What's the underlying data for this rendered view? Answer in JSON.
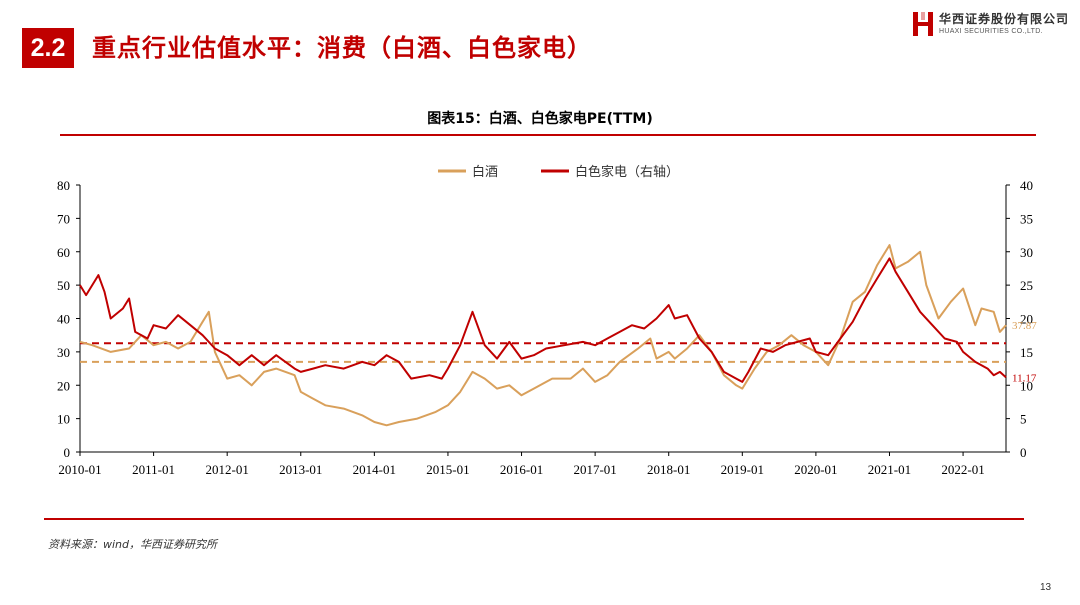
{
  "header": {
    "section_number": "2.2",
    "title": "重点行业估值水平：消费（白酒、白色家电）"
  },
  "logo": {
    "name_cn": "华西证券股份有限公司",
    "name_en": "HUAXI SECURITIES CO.,LTD."
  },
  "colors": {
    "brand_red": "#c00000",
    "baijiu": "#d9a05b",
    "appliance": "#c00000"
  },
  "chart_data": {
    "type": "line",
    "title": "图表15：白酒、白色家电PE(TTM)",
    "x_ticks": [
      "2010-01",
      "2011-01",
      "2012-01",
      "2013-01",
      "2014-01",
      "2015-01",
      "2016-01",
      "2017-01",
      "2018-01",
      "2019-01",
      "2020-01",
      "2021-01",
      "2022-01"
    ],
    "xlim": [
      "2010-01",
      "2022-08"
    ],
    "y_left": {
      "ticks": [
        "0",
        "10",
        "20",
        "30",
        "40",
        "50",
        "60",
        "70",
        "80"
      ],
      "lim": [
        0,
        80
      ]
    },
    "y_right": {
      "ticks": [
        "0",
        "5",
        "10",
        "15",
        "20",
        "25",
        "30",
        "35",
        "40"
      ],
      "lim": [
        0,
        40
      ]
    },
    "legend_position": "top-center",
    "grid": false,
    "series": [
      {
        "name": "白酒",
        "axis": "left",
        "style": "solid",
        "points": [
          [
            "2010-01",
            33
          ],
          [
            "2010-03",
            32
          ],
          [
            "2010-06",
            30
          ],
          [
            "2010-09",
            31
          ],
          [
            "2010-11",
            35
          ],
          [
            "2011-01",
            32
          ],
          [
            "2011-03",
            33
          ],
          [
            "2011-05",
            31
          ],
          [
            "2011-07",
            33
          ],
          [
            "2011-09",
            39
          ],
          [
            "2011-10",
            42
          ],
          [
            "2011-11",
            30
          ],
          [
            "2012-01",
            22
          ],
          [
            "2012-03",
            23
          ],
          [
            "2012-05",
            20
          ],
          [
            "2012-07",
            24
          ],
          [
            "2012-09",
            25
          ],
          [
            "2012-12",
            23
          ],
          [
            "2013-01",
            18
          ],
          [
            "2013-03",
            16
          ],
          [
            "2013-05",
            14
          ],
          [
            "2013-08",
            13
          ],
          [
            "2013-11",
            11
          ],
          [
            "2014-01",
            9
          ],
          [
            "2014-03",
            8
          ],
          [
            "2014-05",
            9
          ],
          [
            "2014-08",
            10
          ],
          [
            "2014-11",
            12
          ],
          [
            "2015-01",
            14
          ],
          [
            "2015-03",
            18
          ],
          [
            "2015-05",
            24
          ],
          [
            "2015-07",
            22
          ],
          [
            "2015-09",
            19
          ],
          [
            "2015-11",
            20
          ],
          [
            "2016-01",
            17
          ],
          [
            "2016-03",
            19
          ],
          [
            "2016-06",
            22
          ],
          [
            "2016-09",
            22
          ],
          [
            "2016-11",
            25
          ],
          [
            "2017-01",
            21
          ],
          [
            "2017-03",
            23
          ],
          [
            "2017-05",
            27
          ],
          [
            "2017-08",
            31
          ],
          [
            "2017-10",
            34
          ],
          [
            "2017-11",
            28
          ],
          [
            "2018-01",
            30
          ],
          [
            "2018-02",
            28
          ],
          [
            "2018-04",
            31
          ],
          [
            "2018-06",
            35
          ],
          [
            "2018-08",
            30
          ],
          [
            "2018-10",
            23
          ],
          [
            "2018-12",
            20
          ],
          [
            "2019-01",
            19
          ],
          [
            "2019-03",
            25
          ],
          [
            "2019-05",
            30
          ],
          [
            "2019-07",
            32
          ],
          [
            "2019-09",
            35
          ],
          [
            "2019-11",
            32
          ],
          [
            "2020-01",
            30
          ],
          [
            "2020-03",
            26
          ],
          [
            "2020-05",
            34
          ],
          [
            "2020-07",
            45
          ],
          [
            "2020-09",
            48
          ],
          [
            "2020-11",
            56
          ],
          [
            "2021-01",
            62
          ],
          [
            "2021-02",
            55
          ],
          [
            "2021-04",
            57
          ],
          [
            "2021-06",
            60
          ],
          [
            "2021-07",
            50
          ],
          [
            "2021-09",
            40
          ],
          [
            "2021-11",
            45
          ],
          [
            "2022-01",
            49
          ],
          [
            "2022-03",
            38
          ],
          [
            "2022-04",
            43
          ],
          [
            "2022-06",
            42
          ],
          [
            "2022-07",
            36
          ],
          [
            "2022-08",
            38
          ]
        ],
        "last_label": "37.87"
      },
      {
        "name": "白色家电（右轴）",
        "axis": "right",
        "style": "solid",
        "points": [
          [
            "2010-01",
            25
          ],
          [
            "2010-02",
            23.5
          ],
          [
            "2010-04",
            26.5
          ],
          [
            "2010-05",
            24
          ],
          [
            "2010-06",
            20
          ],
          [
            "2010-08",
            21.5
          ],
          [
            "2010-09",
            23
          ],
          [
            "2010-10",
            18
          ],
          [
            "2010-12",
            17
          ],
          [
            "2011-01",
            19
          ],
          [
            "2011-03",
            18.5
          ],
          [
            "2011-05",
            20.5
          ],
          [
            "2011-07",
            19
          ],
          [
            "2011-09",
            17.5
          ],
          [
            "2011-11",
            15.5
          ],
          [
            "2012-01",
            14.5
          ],
          [
            "2012-03",
            13
          ],
          [
            "2012-05",
            14.5
          ],
          [
            "2012-07",
            13
          ],
          [
            "2012-09",
            14.5
          ],
          [
            "2012-12",
            12.5
          ],
          [
            "2013-01",
            12
          ],
          [
            "2013-03",
            12.5
          ],
          [
            "2013-05",
            13
          ],
          [
            "2013-08",
            12.5
          ],
          [
            "2013-11",
            13.5
          ],
          [
            "2014-01",
            13
          ],
          [
            "2014-03",
            14.5
          ],
          [
            "2014-05",
            13.5
          ],
          [
            "2014-07",
            11
          ],
          [
            "2014-10",
            11.5
          ],
          [
            "2014-12",
            11
          ],
          [
            "2015-01",
            12.5
          ],
          [
            "2015-03",
            16
          ],
          [
            "2015-05",
            21
          ],
          [
            "2015-07",
            16
          ],
          [
            "2015-09",
            14
          ],
          [
            "2015-11",
            16.5
          ],
          [
            "2016-01",
            14
          ],
          [
            "2016-03",
            14.5
          ],
          [
            "2016-05",
            15.5
          ],
          [
            "2016-08",
            16
          ],
          [
            "2016-11",
            16.5
          ],
          [
            "2017-01",
            16
          ],
          [
            "2017-03",
            17
          ],
          [
            "2017-05",
            18
          ],
          [
            "2017-07",
            19
          ],
          [
            "2017-09",
            18.5
          ],
          [
            "2017-11",
            20
          ],
          [
            "2018-01",
            22
          ],
          [
            "2018-02",
            20
          ],
          [
            "2018-04",
            20.5
          ],
          [
            "2018-06",
            17
          ],
          [
            "2018-08",
            15
          ],
          [
            "2018-10",
            12
          ],
          [
            "2018-12",
            11
          ],
          [
            "2019-01",
            10.5
          ],
          [
            "2019-02",
            12
          ],
          [
            "2019-04",
            15.5
          ],
          [
            "2019-06",
            15
          ],
          [
            "2019-08",
            16
          ],
          [
            "2019-10",
            16.5
          ],
          [
            "2019-12",
            17
          ],
          [
            "2020-01",
            15
          ],
          [
            "2020-03",
            14.5
          ],
          [
            "2020-05",
            17
          ],
          [
            "2020-07",
            19.5
          ],
          [
            "2020-09",
            23
          ],
          [
            "2020-11",
            26
          ],
          [
            "2021-01",
            29
          ],
          [
            "2021-02",
            27
          ],
          [
            "2021-04",
            24
          ],
          [
            "2021-06",
            21
          ],
          [
            "2021-08",
            19
          ],
          [
            "2021-10",
            17
          ],
          [
            "2021-12",
            16.5
          ],
          [
            "2022-01",
            15
          ],
          [
            "2022-03",
            13.5
          ],
          [
            "2022-05",
            12.5
          ],
          [
            "2022-06",
            11.5
          ],
          [
            "2022-07",
            12
          ],
          [
            "2022-08",
            11.17
          ]
        ],
        "last_label": "11.17"
      },
      {
        "axis": "left",
        "style": "dashed",
        "value": 27
      },
      {
        "axis": "right",
        "style": "dashed",
        "value": 16.3
      }
    ],
    "legend": [
      "白酒",
      "白色家电（右轴）"
    ]
  },
  "footer": {
    "source": "资料来源：wind，华西证券研究所",
    "page": "13"
  }
}
